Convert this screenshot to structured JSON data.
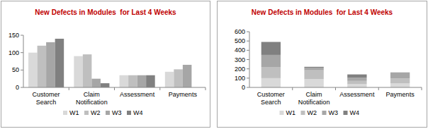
{
  "chart_data": [
    {
      "type": "bar",
      "title": "New Defects in Modules  for Last 4 Weeks",
      "categories": [
        "Customer Search",
        "Claim Notification",
        "Assessment",
        "Payments"
      ],
      "series": [
        {
          "name": "W1",
          "color": "#d9d9d9",
          "values": [
            100,
            90,
            35,
            45
          ]
        },
        {
          "name": "W2",
          "color": "#bfbfbf",
          "values": [
            120,
            95,
            35,
            52
          ]
        },
        {
          "name": "W3",
          "color": "#a6a6a6",
          "values": [
            130,
            25,
            35,
            65
          ]
        },
        {
          "name": "W4",
          "color": "#808080",
          "values": [
            140,
            12,
            35,
            0
          ]
        }
      ],
      "ylim": [
        0,
        150
      ],
      "yticks": [
        0,
        50,
        100,
        150
      ],
      "grid": false,
      "legend": "bottom",
      "stacked": false
    },
    {
      "type": "bar",
      "title": "New Defects in Modules  for Last 4 Weeks",
      "categories": [
        "Customer Search",
        "Claim Notification",
        "Assessment",
        "Payments"
      ],
      "series": [
        {
          "name": "W1",
          "color": "#d9d9d9",
          "values": [
            100,
            90,
            35,
            45
          ]
        },
        {
          "name": "W2",
          "color": "#bfbfbf",
          "values": [
            120,
            95,
            35,
            52
          ]
        },
        {
          "name": "W3",
          "color": "#a6a6a6",
          "values": [
            130,
            25,
            35,
            65
          ]
        },
        {
          "name": "W4",
          "color": "#808080",
          "values": [
            140,
            12,
            35,
            0
          ]
        }
      ],
      "ylim": [
        0,
        600
      ],
      "yticks": [
        0,
        100,
        200,
        300,
        400,
        500,
        600
      ],
      "grid": false,
      "legend": "bottom",
      "stacked": true
    }
  ]
}
